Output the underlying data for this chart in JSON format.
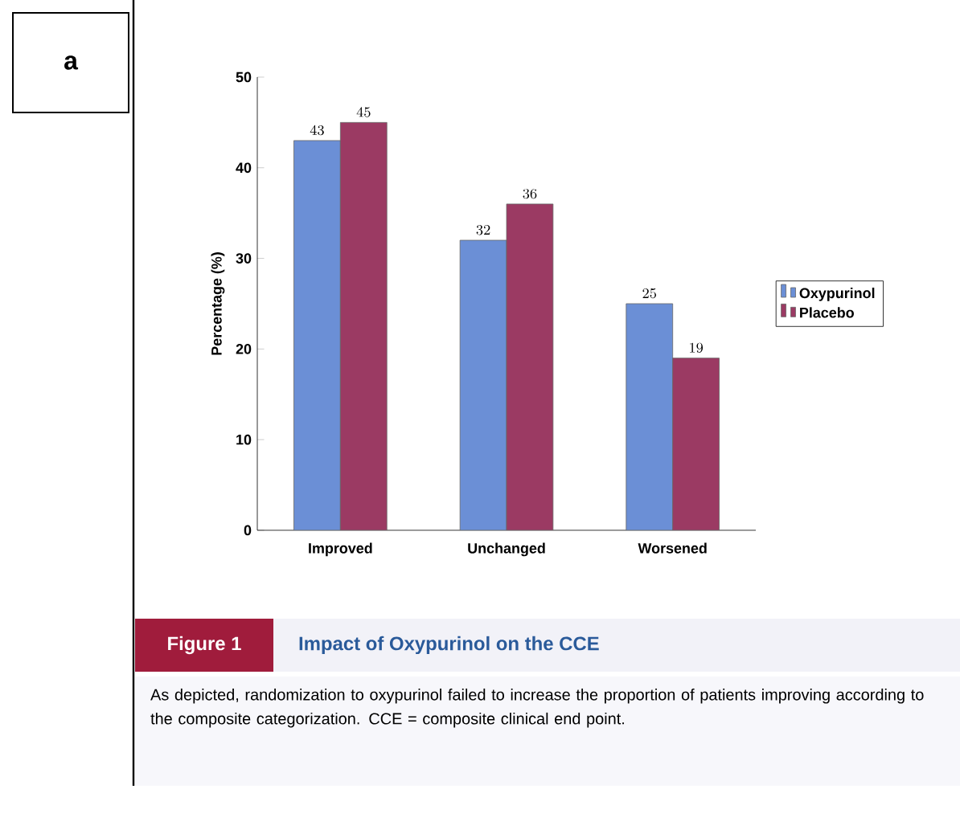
{
  "chart_data": {
    "type": "bar",
    "title": "Impact of Oxypurinol on the CCE",
    "ylabel": "Percentage (%)",
    "categories": [
      "Improved",
      "Unchanged",
      "Worsened"
    ],
    "series": [
      {
        "name": "Oxypurinol",
        "color": "#6b8fd6",
        "values": [
          43,
          32,
          25
        ]
      },
      {
        "name": "Placebo",
        "color": "#9b3a63",
        "values": [
          45,
          36,
          19
        ]
      }
    ],
    "ylim": [
      0,
      50
    ],
    "yticks": [
      0,
      10,
      20,
      30,
      40,
      50
    ],
    "data_labels": true,
    "legend": "right",
    "grid": false,
    "annotations": [
      "a",
      "Figure 1",
      "As depicted, randomization to oxypurinol failed to increase the proportion of patients improving according to the composite categorization. CCE = composite clinical end point."
    ]
  }
}
